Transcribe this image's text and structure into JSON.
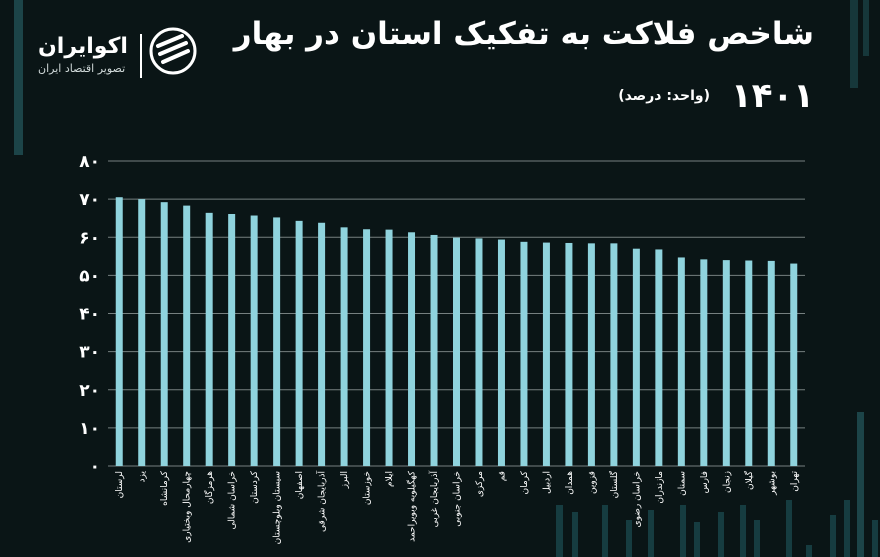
{
  "header": {
    "title": "شاخص فلاکت به تفکیک استان در بهار",
    "year": "۱۴۰۱",
    "unit": "(واحد: درصد)"
  },
  "logo": {
    "name": "اکوایران",
    "tagline": "تصویر اقتصاد ایران",
    "icon": "ecoiran-logo-icon"
  },
  "colors": {
    "background": "#0a1516",
    "bar": "#8fd3dd",
    "grid": "#cfd8d8",
    "text": "#ffffff"
  },
  "chart_data": {
    "type": "bar",
    "title": "",
    "xlabel": "",
    "ylabel": "",
    "ylim": [
      0,
      80
    ],
    "yticks": [
      "۰",
      "۱۰",
      "۲۰",
      "۳۰",
      "۴۰",
      "۵۰",
      "۶۰",
      "۷۰",
      "۸۰"
    ],
    "grid": true,
    "categories": [
      "لرستان",
      "یزد",
      "کرمانشاه",
      "چهارمحال وبختیاری",
      "هرمزگان",
      "خراسان شمالی",
      "کردستان",
      "سیستان وبلوچستان",
      "اصفهان",
      "آذربایجان شرقی",
      "البرز",
      "خوزستان",
      "ایلام",
      "کهگیلویه وبویراحمد",
      "آذربایجان غربی",
      "خراسان جنوبی",
      "مرکزی",
      "قم",
      "کرمان",
      "اردبیل",
      "همدان",
      "قزوین",
      "گلستان",
      "خراسان رضوی",
      "مازندران",
      "سمنان",
      "فارس",
      "زنجان",
      "گیلان",
      "بوشهر",
      "تهران"
    ],
    "values": [
      70.5,
      70,
      69.2,
      68.3,
      66.4,
      66.1,
      65.7,
      65.2,
      64.3,
      63.8,
      62.6,
      62.1,
      62,
      61.3,
      60.6,
      59.9,
      59.7,
      59.4,
      58.8,
      58.6,
      58.5,
      58.4,
      58.4,
      57,
      56.8,
      54.7,
      54.2,
      54,
      53.9,
      53.8,
      53.1
    ]
  }
}
